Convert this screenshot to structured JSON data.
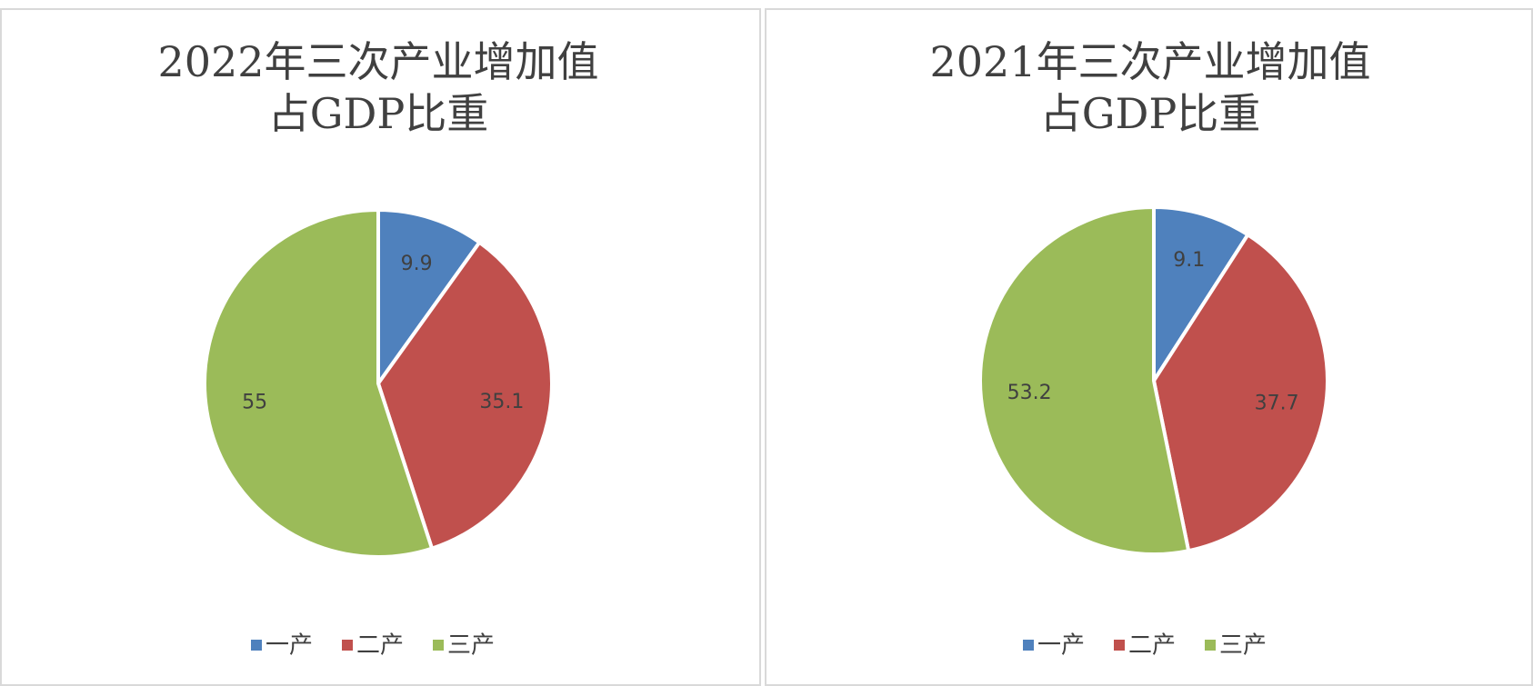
{
  "chart_data": [
    {
      "type": "pie",
      "title": [
        "2022年三次产业增加值",
        "占GDP比重"
      ],
      "categories": [
        "一产",
        "二产",
        "三产"
      ],
      "values": [
        9.9,
        35.1,
        55
      ],
      "colors": [
        "#4f81bd",
        "#c0504d",
        "#9bbb59"
      ]
    },
    {
      "type": "pie",
      "title": [
        "2021年三次产业增加值",
        "占GDP比重"
      ],
      "categories": [
        "一产",
        "二产",
        "三产"
      ],
      "values": [
        9.1,
        37.7,
        53.2
      ],
      "colors": [
        "#4f81bd",
        "#c0504d",
        "#9bbb59"
      ]
    }
  ]
}
